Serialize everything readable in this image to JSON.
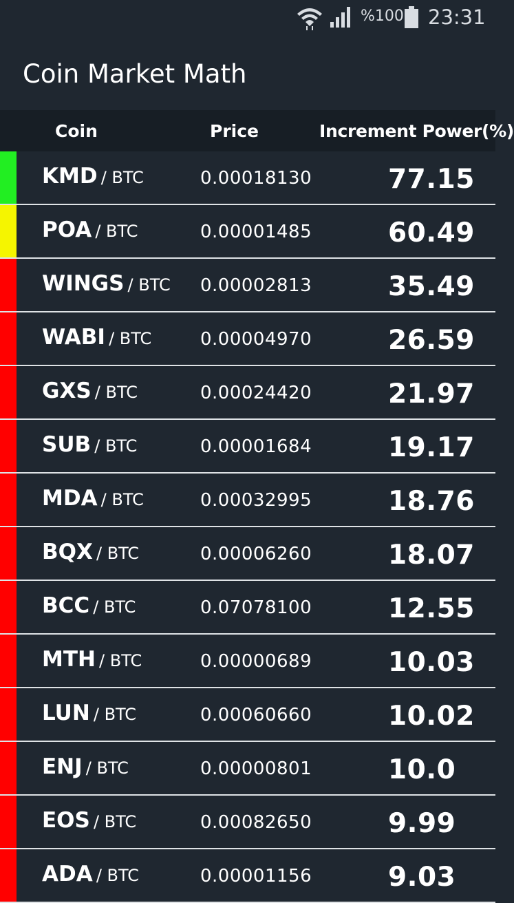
{
  "status_bar": {
    "battery_text": "%100",
    "time": "23:31",
    "icons": [
      "wifi-icon",
      "signal-icon",
      "battery-icon"
    ]
  },
  "app": {
    "title": "Coin Market Math"
  },
  "table": {
    "headers": {
      "coin": "Coin",
      "price": "Price",
      "increment": "Increment Power(%)"
    },
    "rows": [
      {
        "coin": "KMD",
        "pair": "/ BTC",
        "price": "0.00018130",
        "increment": "77.15",
        "indicator": "#22ee22"
      },
      {
        "coin": "POA",
        "pair": "/ BTC",
        "price": "0.00001485",
        "increment": "60.49",
        "indicator": "#f5f500"
      },
      {
        "coin": "WINGS",
        "pair": "/ BTC",
        "price": "0.00002813",
        "increment": "35.49",
        "indicator": "#ff0000"
      },
      {
        "coin": "WABI",
        "pair": "/ BTC",
        "price": "0.00004970",
        "increment": "26.59",
        "indicator": "#ff0000"
      },
      {
        "coin": "GXS",
        "pair": "/ BTC",
        "price": "0.00024420",
        "increment": "21.97",
        "indicator": "#ff0000"
      },
      {
        "coin": "SUB",
        "pair": "/ BTC",
        "price": "0.00001684",
        "increment": "19.17",
        "indicator": "#ff0000"
      },
      {
        "coin": "MDA",
        "pair": "/ BTC",
        "price": "0.00032995",
        "increment": "18.76",
        "indicator": "#ff0000"
      },
      {
        "coin": "BQX",
        "pair": "/ BTC",
        "price": "0.00006260",
        "increment": "18.07",
        "indicator": "#ff0000"
      },
      {
        "coin": "BCC",
        "pair": "/ BTC",
        "price": "0.07078100",
        "increment": "12.55",
        "indicator": "#ff0000"
      },
      {
        "coin": "MTH",
        "pair": "/ BTC",
        "price": "0.00000689",
        "increment": "10.03",
        "indicator": "#ff0000"
      },
      {
        "coin": "LUN",
        "pair": "/ BTC",
        "price": "0.00060660",
        "increment": "10.02",
        "indicator": "#ff0000"
      },
      {
        "coin": "ENJ",
        "pair": "/ BTC",
        "price": "0.00000801",
        "increment": "10.0",
        "indicator": "#ff0000"
      },
      {
        "coin": "EOS",
        "pair": "/ BTC",
        "price": "0.00082650",
        "increment": "9.99",
        "indicator": "#ff0000"
      },
      {
        "coin": "ADA",
        "pair": "/ BTC",
        "price": "0.00001156",
        "increment": "9.03",
        "indicator": "#ff0000"
      }
    ]
  }
}
